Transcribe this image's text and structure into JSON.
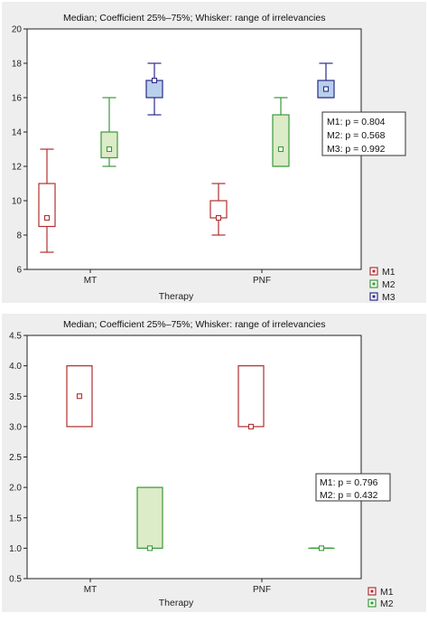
{
  "chart_data": [
    {
      "type": "box",
      "title": "Median; Coefficient 25%–75%; Whisker: range of irrelevancies",
      "xlabel": "Therapy",
      "ylabel": "",
      "ylim": [
        6,
        20
      ],
      "yticks": [
        "6",
        "8",
        "10",
        "12",
        "14",
        "16",
        "18",
        "20"
      ],
      "grid": false,
      "legend_position": "bottom-right",
      "categories": [
        "MT",
        "PNF"
      ],
      "series": [
        {
          "name": "M1",
          "color": "#b03030",
          "fill": "#ffffff",
          "boxes": [
            {
              "category": "MT",
              "median": 9,
              "q1": 8.5,
              "q3": 11,
              "min": 7,
              "max": 13
            },
            {
              "category": "PNF",
              "median": 9,
              "q1": 9,
              "q3": 10,
              "min": 8,
              "max": 11
            }
          ]
        },
        {
          "name": "M2",
          "color": "#3a9a3a",
          "fill": "#dcebc8",
          "boxes": [
            {
              "category": "MT",
              "median": 13,
              "q1": 12.5,
              "q3": 14,
              "min": 12,
              "max": 16
            },
            {
              "category": "PNF",
              "median": 13,
              "q1": 12,
              "q3": 15,
              "min": 12,
              "max": 16
            }
          ]
        },
        {
          "name": "M3",
          "color": "#2a2a8a",
          "fill": "#b8d0ec",
          "boxes": [
            {
              "category": "MT",
              "median": 17,
              "q1": 16,
              "q3": 17,
              "min": 15,
              "max": 18
            },
            {
              "category": "PNF",
              "median": 16.5,
              "q1": 16,
              "q3": 17,
              "min": 16,
              "max": 18
            }
          ]
        }
      ],
      "annotations": [
        "M1: p = 0.804",
        "M2: p = 0.568",
        "M3: p = 0.992"
      ]
    },
    {
      "type": "box",
      "title": "Median; Coefficient 25%–75%; Whisker: range of irrelevancies",
      "xlabel": "Therapy",
      "ylabel": "",
      "ylim": [
        0.5,
        4.5
      ],
      "yticks": [
        "0.5",
        "1.0",
        "1.5",
        "2.0",
        "2.5",
        "3.0",
        "3.5",
        "4.0",
        "4.5"
      ],
      "grid": false,
      "legend_position": "bottom-right",
      "categories": [
        "MT",
        "PNF"
      ],
      "series": [
        {
          "name": "M1",
          "color": "#b03030",
          "fill": "#ffffff",
          "boxes": [
            {
              "category": "MT",
              "median": 3.5,
              "q1": 3,
              "q3": 4,
              "min": 3,
              "max": 4
            },
            {
              "category": "PNF",
              "median": 3,
              "q1": 3,
              "q3": 4,
              "min": 3,
              "max": 4
            }
          ]
        },
        {
          "name": "M2",
          "color": "#3a9a3a",
          "fill": "#dcebc8",
          "boxes": [
            {
              "category": "MT",
              "median": 1,
              "q1": 1,
              "q3": 2,
              "min": 1,
              "max": 2
            },
            {
              "category": "PNF",
              "median": 1,
              "q1": 1,
              "q3": 1,
              "min": 1,
              "max": 1
            }
          ]
        }
      ],
      "annotations": [
        "M1: p = 0.796",
        "M2: p = 0.432"
      ]
    }
  ]
}
